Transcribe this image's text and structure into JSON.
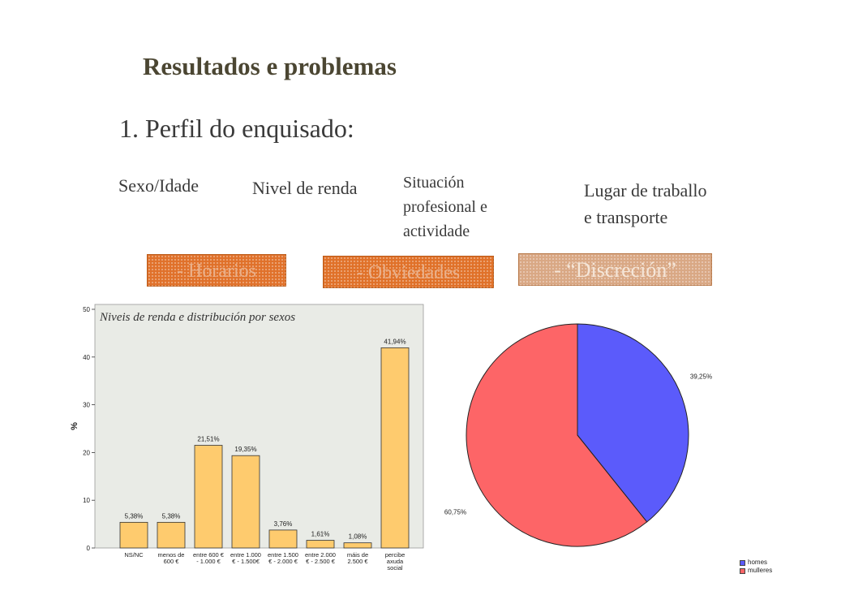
{
  "slide": {
    "title": "Resultados e problemas",
    "subtitle": "1. Perfil do enquisado:"
  },
  "categories": {
    "sexo_idade": "Sexo/Idade",
    "nivel_renda": "Nivel de renda",
    "situacion_lines": [
      "Situación",
      "profesional e",
      "actividade"
    ],
    "lugar_lines": [
      "Lugar de traballo",
      "e transporte"
    ]
  },
  "tags": {
    "horarios": "- Horarios",
    "obviedades": "- Obviedades",
    "discrecion": "- “Discreción”"
  },
  "colors": {
    "bar_fill": "#fecb6e",
    "plot_bg": "#e9ebe6",
    "pie_homes": "#5b5bfb",
    "pie_mulleres": "#fd6567",
    "title_color": "#4b4632"
  },
  "chart_data": [
    {
      "type": "bar",
      "title": "Niveis de renda e distribución por sexos",
      "ylabel": "%",
      "xlabel": "",
      "ylim": [
        0,
        50
      ],
      "yticks": [
        "0",
        "10",
        "20",
        "30",
        "40",
        "50"
      ],
      "grid": false,
      "categories": [
        [
          "NS/NC"
        ],
        [
          "menos de",
          "600 €"
        ],
        [
          "entre 600 €",
          "- 1.000 €"
        ],
        [
          "entre 1.000",
          "€ - 1.500€"
        ],
        [
          "entre 1.500",
          "€ - 2.000 €"
        ],
        [
          "entre 2.000",
          "€ - 2.500 €"
        ],
        [
          "máis de",
          "2.500 €"
        ],
        [
          "percibe",
          "axuda",
          "social"
        ]
      ],
      "values": [
        5.38,
        5.38,
        21.51,
        19.35,
        3.76,
        1.61,
        1.08,
        41.94
      ],
      "data_labels": [
        "5,38%",
        "5,38%",
        "21,51%",
        "19,35%",
        "3,76%",
        "1,61%",
        "1,08%",
        "41,94%"
      ]
    },
    {
      "type": "pie",
      "slices": [
        {
          "name": "homes",
          "value": 39.25,
          "label": "39,25%",
          "color": "#5b5bfb"
        },
        {
          "name": "mulleres",
          "value": 60.75,
          "label": "60,75%",
          "color": "#fd6567"
        }
      ],
      "legend_placement": "bottom-right"
    }
  ]
}
